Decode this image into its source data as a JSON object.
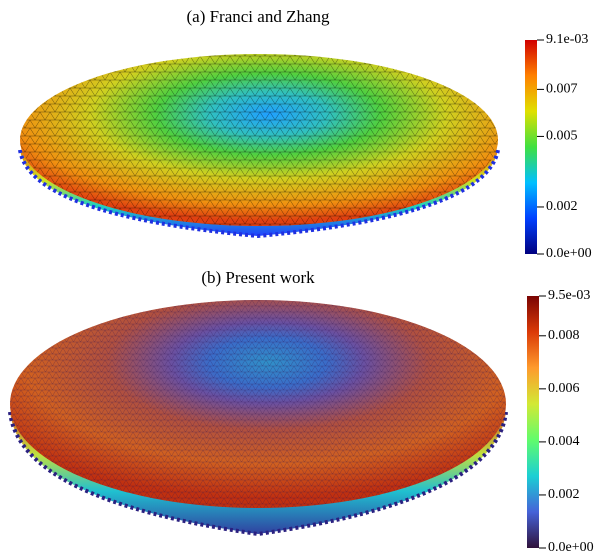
{
  "panels": [
    {
      "title": "(a) Franci and Zhang",
      "colormap": [
        "#00007f",
        "#0040ff",
        "#00c0ff",
        "#40e040",
        "#e0e000",
        "#ff8000",
        "#d00000"
      ],
      "ticks": [
        {
          "value": 0,
          "label": "0.0e+00"
        },
        0.002,
        0.005,
        0.007,
        {
          "value": 0.0091,
          "label": "9.1e-03"
        }
      ]
    },
    {
      "title": "(b) Present work",
      "colormap": [
        "#30123b",
        "#4662d8",
        "#1bcfd4",
        "#61fc6c",
        "#d2e935",
        "#fe9b2d",
        "#db3a07",
        "#7a0403"
      ],
      "ticks": [
        {
          "value": 0,
          "label": "0.0e+00"
        },
        0.002,
        0.004,
        0.006,
        0.008,
        {
          "value": 0.0095,
          "label": "9.5e-03"
        }
      ]
    }
  ]
}
